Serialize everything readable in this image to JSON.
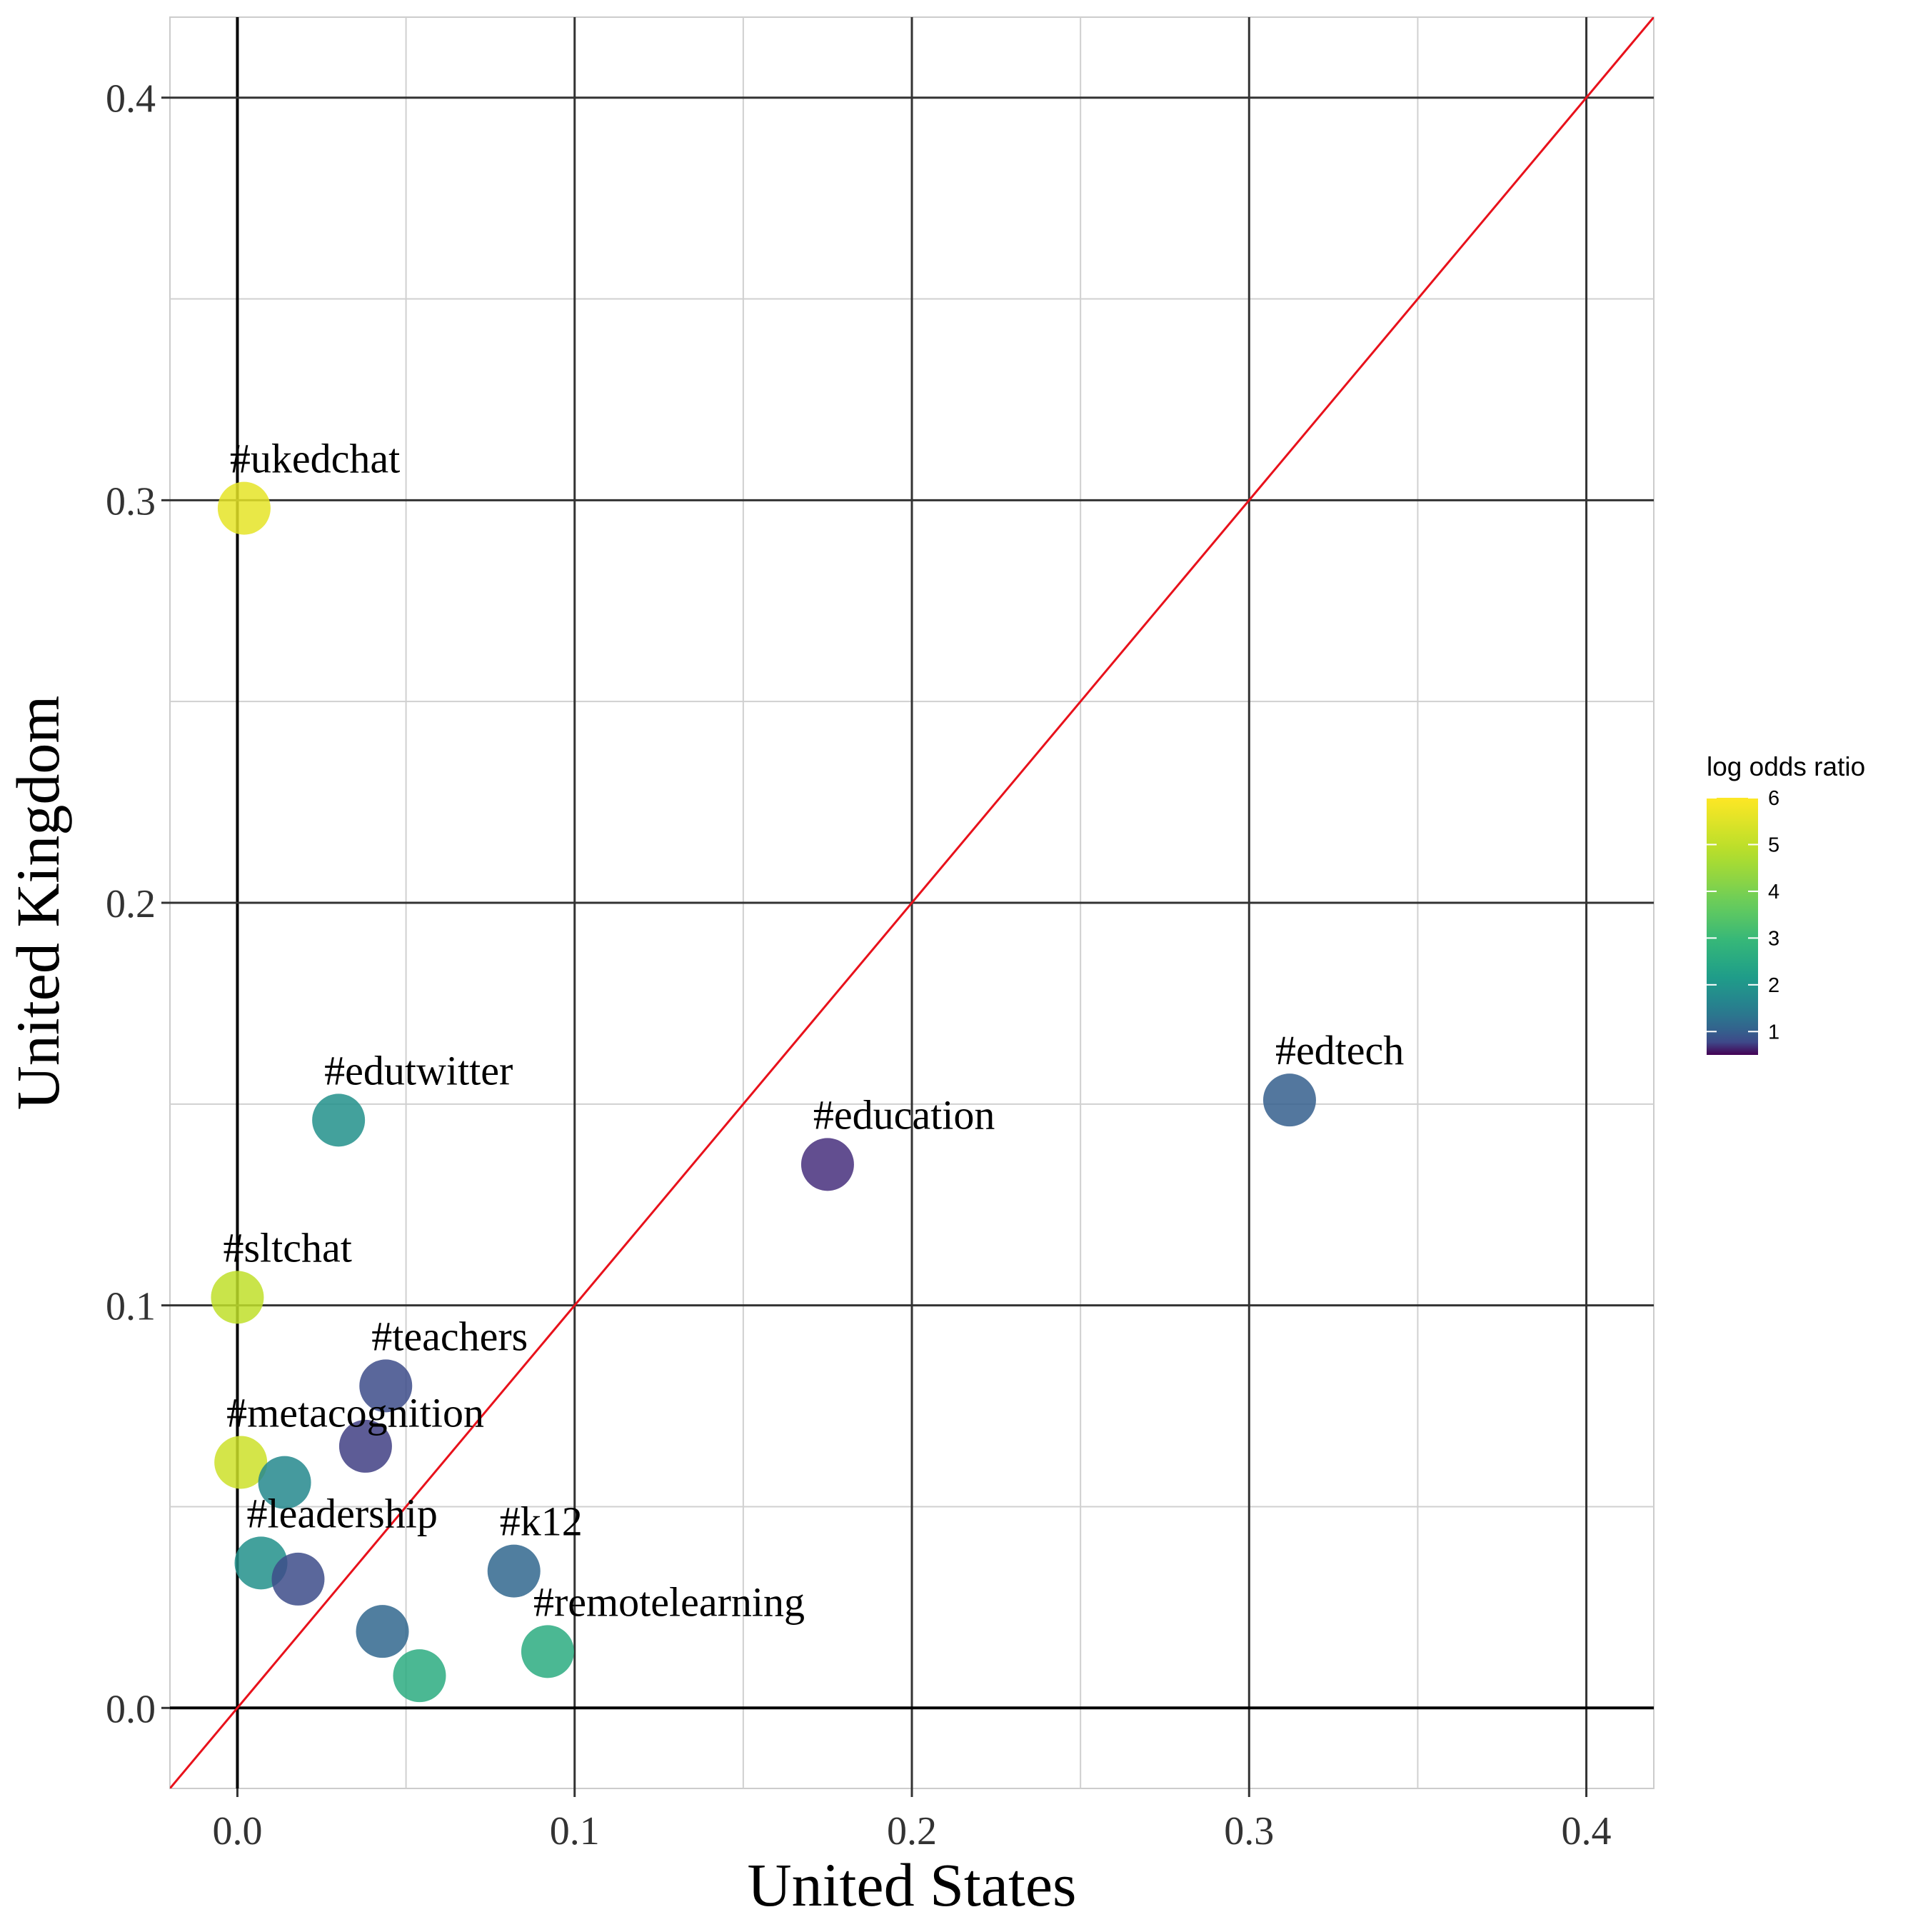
{
  "chart_data": {
    "type": "scatter",
    "title": "",
    "xlabel": "United States",
    "ylabel": "United Kingdom",
    "xlim": [
      -0.02,
      0.42
    ],
    "ylim": [
      -0.02,
      0.42
    ],
    "x_ticks": [
      0.0,
      0.1,
      0.2,
      0.3,
      0.4
    ],
    "x_tick_labels": [
      "0.0",
      "0.1",
      "0.2",
      "0.3",
      "0.4"
    ],
    "y_ticks": [
      0.0,
      0.1,
      0.2,
      0.3,
      0.4
    ],
    "y_tick_labels": [
      "0.0",
      "0.1",
      "0.2",
      "0.3",
      "0.4"
    ],
    "grid": true,
    "reference_line": {
      "type": "y=x",
      "color": "#e8111b"
    },
    "colorscale": "viridis",
    "color_legend": {
      "title": "log odds ratio",
      "ticks": [
        1,
        2,
        3,
        4,
        5,
        6
      ],
      "tick_labels": [
        "1",
        "2",
        "3",
        "4",
        "5",
        "6"
      ],
      "range": [
        0.5,
        6
      ],
      "position": "right"
    },
    "points": [
      {
        "label": "#ukedchat",
        "x": 0.002,
        "y": 0.298,
        "log_odds_ratio": 5.6
      },
      {
        "label": "#edutwitter",
        "x": 0.03,
        "y": 0.146,
        "log_odds_ratio": 1.9
      },
      {
        "label": "#education",
        "x": 0.175,
        "y": 0.135,
        "log_odds_ratio": 0.6
      },
      {
        "label": "#edtech",
        "x": 0.312,
        "y": 0.151,
        "log_odds_ratio": 1.0
      },
      {
        "label": "#sltchat",
        "x": 0.0,
        "y": 0.102,
        "log_odds_ratio": 5.0
      },
      {
        "label": "#teachers",
        "x": 0.044,
        "y": 0.08,
        "log_odds_ratio": 0.8
      },
      {
        "label": "",
        "x": 0.038,
        "y": 0.065,
        "log_odds_ratio": 0.7
      },
      {
        "label": "#metacognition",
        "x": 0.001,
        "y": 0.061,
        "log_odds_ratio": 5.2
      },
      {
        "label": "",
        "x": 0.014,
        "y": 0.056,
        "log_odds_ratio": 1.7
      },
      {
        "label": "#leadership",
        "x": 0.007,
        "y": 0.036,
        "log_odds_ratio": 1.9
      },
      {
        "label": "",
        "x": 0.018,
        "y": 0.032,
        "log_odds_ratio": 0.8
      },
      {
        "label": "#k12",
        "x": 0.082,
        "y": 0.034,
        "log_odds_ratio": 1.1
      },
      {
        "label": "",
        "x": 0.043,
        "y": 0.019,
        "log_odds_ratio": 1.1
      },
      {
        "label": "#remotelearning",
        "x": 0.092,
        "y": 0.014,
        "log_odds_ratio": 2.6
      },
      {
        "label": "",
        "x": 0.054,
        "y": 0.008,
        "log_odds_ratio": 2.6
      }
    ]
  }
}
